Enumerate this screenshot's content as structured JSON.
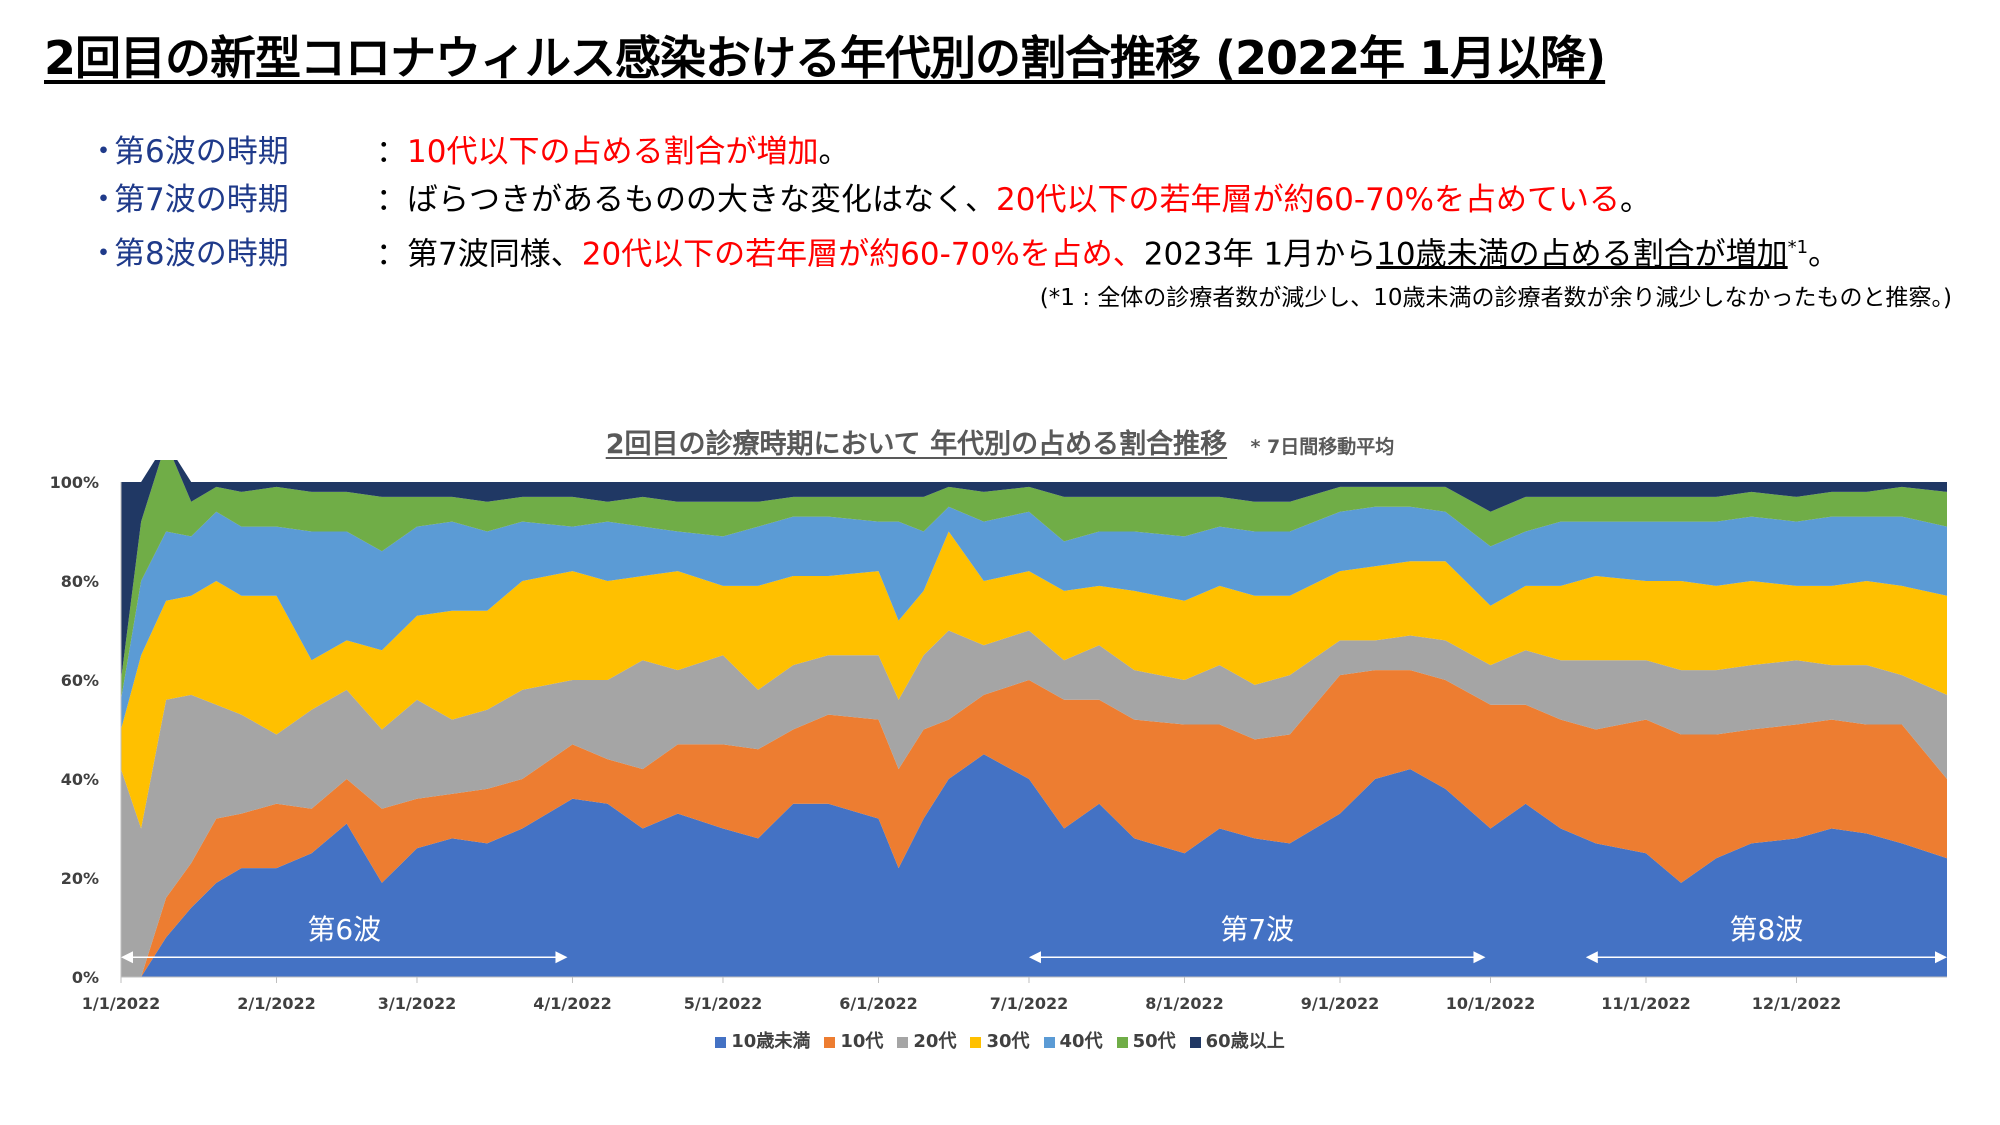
{
  "page": {
    "title": "2回目の新型コロナウィルス感染おける年代別の割合推移 (2022年 1月以降)",
    "bullets": [
      {
        "dot": "・",
        "wave": "第6波の時期",
        "colon": "：",
        "segments": [
          {
            "text": "10代以下の占める割合が増加",
            "style": "red"
          },
          {
            "text": "。",
            "style": "plain"
          }
        ]
      },
      {
        "dot": "・",
        "wave": "第7波の時期",
        "colon": "：",
        "segments": [
          {
            "text": "ばらつきがあるものの大きな変化はなく、",
            "style": "plain"
          },
          {
            "text": "20代以下の若年層が約60-70%を占めている",
            "style": "red"
          },
          {
            "text": "。",
            "style": "plain"
          }
        ]
      },
      {
        "dot": "・",
        "wave": "第8波の時期",
        "colon": "：",
        "segments": [
          {
            "text": "第7波同様、",
            "style": "plain"
          },
          {
            "text": "20代以下の若年層が約60-70%を占め、",
            "style": "red"
          },
          {
            "text": "2023年 1月から",
            "style": "plain"
          },
          {
            "text": "10歳未満の占める割合が増加",
            "style": "ul"
          },
          {
            "text": "*1",
            "style": "sup"
          },
          {
            "text": "。",
            "style": "plain"
          }
        ]
      }
    ],
    "footnote": "(*1 : 全体の診療者数が減少し、10歳未満の診療者数が余り減少しなかったものと推察。)"
  },
  "chart_data": {
    "type": "area",
    "stacked": true,
    "percent": true,
    "title": "2回目の診療時期において 年代別の占める割合推移",
    "title_note": "* 7日間移動平均",
    "x_start": "2022-01-01",
    "x_end": "2022-12-31",
    "x_ticks": [
      "1/1/2022",
      "2/1/2022",
      "3/1/2022",
      "4/1/2022",
      "5/1/2022",
      "6/1/2022",
      "7/1/2022",
      "8/1/2022",
      "9/1/2022",
      "10/1/2022",
      "11/1/2022",
      "12/1/2022"
    ],
    "y_ticks": [
      "0%",
      "20%",
      "40%",
      "60%",
      "80%",
      "100%"
    ],
    "ylim": [
      0,
      100
    ],
    "x": [
      "2022-01-01",
      "2022-01-05",
      "2022-01-10",
      "2022-01-15",
      "2022-01-20",
      "2022-01-25",
      "2022-02-01",
      "2022-02-08",
      "2022-02-15",
      "2022-02-22",
      "2022-03-01",
      "2022-03-08",
      "2022-03-15",
      "2022-03-22",
      "2022-04-01",
      "2022-04-08",
      "2022-04-15",
      "2022-04-22",
      "2022-05-01",
      "2022-05-08",
      "2022-05-15",
      "2022-05-22",
      "2022-06-01",
      "2022-06-05",
      "2022-06-10",
      "2022-06-15",
      "2022-06-22",
      "2022-07-01",
      "2022-07-08",
      "2022-07-15",
      "2022-07-22",
      "2022-08-01",
      "2022-08-08",
      "2022-08-15",
      "2022-08-22",
      "2022-09-01",
      "2022-09-08",
      "2022-09-15",
      "2022-09-22",
      "2022-10-01",
      "2022-10-08",
      "2022-10-15",
      "2022-10-22",
      "2022-11-01",
      "2022-11-08",
      "2022-11-15",
      "2022-11-22",
      "2022-12-01",
      "2022-12-08",
      "2022-12-15",
      "2022-12-22",
      "2022-12-31"
    ],
    "series": [
      {
        "name": "10歳未満",
        "color": "#4472c4",
        "values": [
          0,
          0,
          8,
          14,
          19,
          22,
          22,
          25,
          31,
          19,
          26,
          28,
          27,
          30,
          36,
          35,
          30,
          33,
          30,
          28,
          35,
          35,
          32,
          22,
          32,
          40,
          45,
          40,
          30,
          35,
          28,
          25,
          30,
          28,
          27,
          33,
          40,
          42,
          38,
          30,
          35,
          30,
          27,
          25,
          19,
          24,
          27,
          28,
          30,
          29,
          27,
          24
        ]
      },
      {
        "name": "10代",
        "color": "#ed7d31",
        "values": [
          0,
          0,
          8,
          9,
          13,
          11,
          13,
          9,
          9,
          15,
          10,
          9,
          11,
          10,
          11,
          9,
          12,
          14,
          17,
          18,
          15,
          18,
          20,
          20,
          18,
          12,
          12,
          20,
          26,
          21,
          24,
          26,
          21,
          20,
          22,
          28,
          22,
          20,
          22,
          25,
          20,
          22,
          23,
          27,
          30,
          25,
          23,
          23,
          22,
          22,
          24,
          16
        ]
      },
      {
        "name": "20代",
        "color": "#a5a5a5",
        "values": [
          42,
          30,
          40,
          34,
          23,
          20,
          14,
          20,
          18,
          16,
          20,
          15,
          16,
          18,
          13,
          16,
          22,
          15,
          18,
          12,
          13,
          12,
          13,
          14,
          15,
          18,
          10,
          10,
          8,
          11,
          10,
          9,
          12,
          11,
          12,
          7,
          6,
          7,
          8,
          8,
          11,
          12,
          14,
          12,
          13,
          13,
          13,
          13,
          11,
          12,
          10,
          17
        ]
      },
      {
        "name": "30代",
        "color": "#ffc000",
        "values": [
          8,
          35,
          20,
          20,
          25,
          24,
          28,
          10,
          10,
          16,
          17,
          22,
          20,
          22,
          22,
          20,
          17,
          20,
          14,
          21,
          18,
          16,
          17,
          16,
          13,
          20,
          13,
          12,
          14,
          12,
          16,
          16,
          16,
          18,
          16,
          14,
          15,
          15,
          16,
          12,
          13,
          15,
          17,
          16,
          18,
          17,
          17,
          15,
          16,
          17,
          18,
          20
        ]
      },
      {
        "name": "40代",
        "color": "#5b9bd5",
        "values": [
          6,
          15,
          14,
          12,
          14,
          14,
          14,
          26,
          22,
          20,
          18,
          18,
          16,
          12,
          9,
          12,
          10,
          8,
          10,
          12,
          12,
          12,
          10,
          20,
          12,
          5,
          12,
          12,
          10,
          11,
          12,
          13,
          12,
          13,
          13,
          12,
          12,
          11,
          10,
          12,
          11,
          13,
          11,
          12,
          12,
          13,
          13,
          13,
          14,
          13,
          14,
          14
        ]
      },
      {
        "name": "50代",
        "color": "#70ad47",
        "values": [
          4,
          12,
          18,
          7,
          5,
          7,
          8,
          8,
          8,
          11,
          6,
          5,
          6,
          5,
          6,
          4,
          6,
          6,
          7,
          5,
          4,
          4,
          5,
          5,
          7,
          4,
          6,
          5,
          9,
          7,
          7,
          8,
          6,
          6,
          6,
          5,
          4,
          4,
          5,
          7,
          7,
          5,
          5,
          5,
          5,
          5,
          5,
          5,
          5,
          5,
          6,
          7
        ]
      },
      {
        "name": "60歳以上",
        "color": "#203864",
        "values": [
          40,
          8,
          0,
          4,
          1,
          2,
          1,
          2,
          2,
          3,
          3,
          3,
          4,
          3,
          3,
          4,
          3,
          4,
          4,
          4,
          3,
          3,
          3,
          3,
          3,
          1,
          2,
          1,
          3,
          3,
          3,
          3,
          3,
          4,
          4,
          1,
          1,
          1,
          1,
          6,
          3,
          3,
          3,
          3,
          3,
          3,
          2,
          3,
          2,
          2,
          1,
          2
        ]
      }
    ],
    "annotations": [
      {
        "label": "第6波",
        "from": "2022-01-01",
        "to": "2022-03-31",
        "y": 4
      },
      {
        "label": "第7波",
        "from": "2022-07-01",
        "to": "2022-09-30",
        "y": 4
      },
      {
        "label": "第8波",
        "from": "2022-10-20",
        "to": "2022-12-31",
        "y": 4
      }
    ],
    "legend": [
      "10歳未満",
      "10代",
      "20代",
      "30代",
      "40代",
      "50代",
      "60歳以上"
    ],
    "legend_position": "bottom"
  }
}
